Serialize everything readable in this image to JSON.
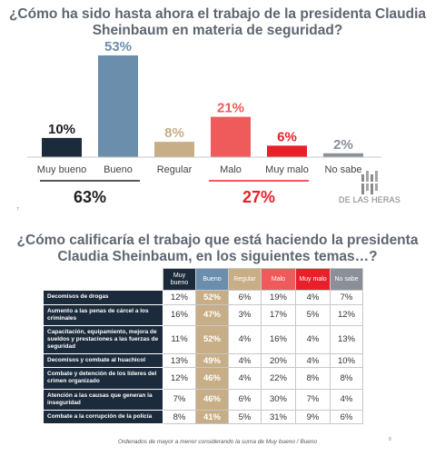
{
  "title_top": "¿Cómo ha sido hasta ahora el trabajo de la presidenta Claudia Sheinbaum en materia de seguridad?",
  "title_bottom": "¿Cómo calificaría el trabajo que está haciendo la presidenta Claudia Sheinbaum, en los siguientes temas…?",
  "chart_data": [
    {
      "type": "bar",
      "title": "¿Cómo ha sido hasta ahora el trabajo de la presidenta Claudia Sheinbaum en materia de seguridad?",
      "categories": [
        "Muy bueno",
        "Bueno",
        "Regular",
        "Malo",
        "Muy malo",
        "No sabe"
      ],
      "values": [
        10,
        53,
        8,
        21,
        6,
        2
      ],
      "value_labels": [
        "10%",
        "53%",
        "8%",
        "21%",
        "6%",
        "2%"
      ],
      "colors": [
        "#1c2b3b",
        "#6c8ead",
        "#c7ae86",
        "#ef5a5a",
        "#e8202a",
        "#8a9098"
      ],
      "label_colors": [
        "#1f1f1f",
        "#6c8ead",
        "#c7ae86",
        "#ef5a5a",
        "#e8202a",
        "#8a9098"
      ],
      "group_totals": [
        {
          "label": "63%",
          "color": "#1f1f1f",
          "categories": [
            "Muy bueno",
            "Bueno"
          ]
        },
        {
          "label": "27%",
          "color": "#e8202a",
          "categories": [
            "Malo",
            "Muy malo"
          ]
        }
      ],
      "ylim": [
        0,
        60
      ],
      "grid": false
    },
    {
      "type": "table",
      "title": "¿Cómo calificaría el trabajo que está haciendo la presidenta Claudia Sheinbaum, en los siguientes temas…?",
      "columns": [
        "Muy bueno",
        "Bueno",
        "Regular",
        "Malo",
        "Muy malo",
        "No sabe"
      ],
      "column_colors": [
        "#1c2b3b",
        "#6c8ead",
        "#c7ae86",
        "#ef5a5a",
        "#e8202a",
        "#8a9098"
      ],
      "rows": [
        {
          "topic": "Decomisos de drogas",
          "values": [
            "12%",
            "52%",
            "6%",
            "19%",
            "4%",
            "7%"
          ]
        },
        {
          "topic": "Aumento a las penas de cárcel a los criminales",
          "values": [
            "16%",
            "47%",
            "3%",
            "17%",
            "5%",
            "12%"
          ]
        },
        {
          "topic": "Capacitación, equipamiento, mejora de sueldos y prestaciones a las fuerzas de seguridad",
          "values": [
            "11%",
            "52%",
            "4%",
            "16%",
            "4%",
            "13%"
          ]
        },
        {
          "topic": "Decomisos y combate al huachicol",
          "values": [
            "13%",
            "49%",
            "4%",
            "20%",
            "4%",
            "10%"
          ]
        },
        {
          "topic": "Combate y detención de los líderes del crimen organizado",
          "values": [
            "12%",
            "46%",
            "4%",
            "22%",
            "8%",
            "8%"
          ]
        },
        {
          "topic": "Atención a las causas que generan la inseguridad",
          "values": [
            "7%",
            "46%",
            "6%",
            "30%",
            "7%",
            "4%"
          ]
        },
        {
          "topic": "Combate a la corrupción de la policía",
          "values": [
            "8%",
            "41%",
            "5%",
            "31%",
            "9%",
            "6%"
          ]
        }
      ],
      "row_heights": [
        1,
        1.5,
        2,
        1,
        1.5,
        1.5,
        1
      ]
    }
  ],
  "logo": {
    "text": "DE LAS HERAS",
    "icon": "de-las-heras-logo-icon"
  },
  "footnote": "Ordenados de mayor a menor considerando la suma de Muy bueno / Bueno",
  "page_mark_left": "7",
  "page_mark_right": "8"
}
